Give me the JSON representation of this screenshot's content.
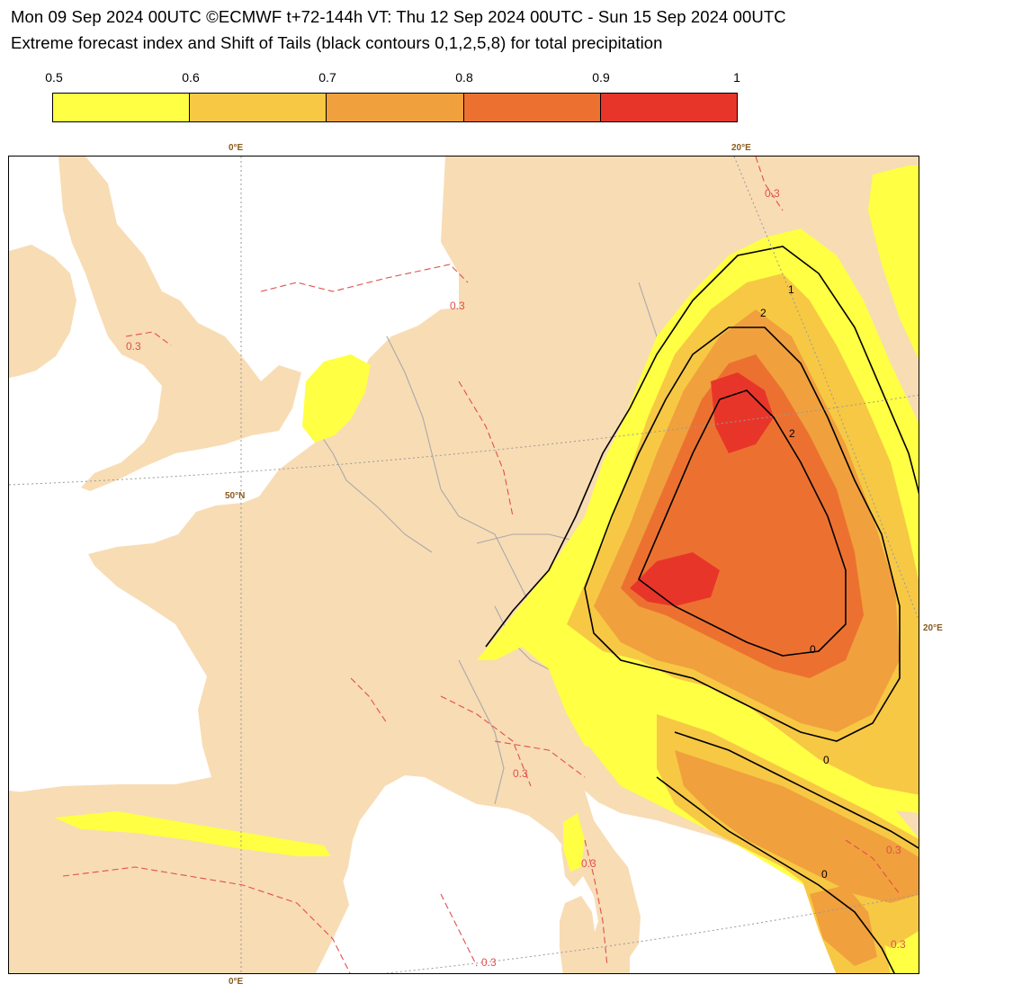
{
  "header": {
    "line1": "Mon 09 Sep 2024 00UTC ©ECMWF t+72-144h  VT: Thu 12 Sep 2024 00UTC - Sun 15 Sep 2024 00UTC",
    "line2": "Extreme forecast index and Shift of Tails (black contours 0,1,2,5,8) for total precipitation"
  },
  "legend": {
    "ticks": [
      "0.5",
      "0.6",
      "0.7",
      "0.8",
      "0.9",
      "1"
    ],
    "colors": [
      "#ffff44",
      "#f7c844",
      "#f0a03c",
      "#ec7130",
      "#e8352a"
    ]
  },
  "map": {
    "land_color": "#f8dcb4",
    "sea_color": "#ffffff",
    "grid_labels": {
      "lon_0_top": "0°E",
      "lon_20_top": "20°E",
      "lat_50": "50°N",
      "lon_20_right": "20°E",
      "lon_0_bottom": "0°E"
    },
    "contour_labels": [
      "0.3",
      "0.3",
      "0.3",
      "0.3",
      "0.3",
      "0.3",
      "0.3",
      "0.3",
      "1",
      "2",
      "2",
      "0",
      "0",
      "0"
    ]
  }
}
